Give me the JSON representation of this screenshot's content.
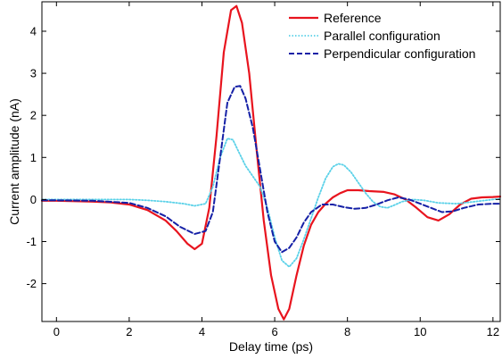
{
  "chart_data": {
    "type": "line",
    "title": "",
    "xlabel": "Delay time (ps)",
    "ylabel": "Current amplitude (nA)",
    "xlim": [
      -0.4,
      12.2
    ],
    "ylim": [
      -2.9,
      4.7
    ],
    "xticks": [
      0,
      2,
      4,
      6,
      8,
      10,
      12
    ],
    "yticks": [
      -2,
      -1,
      0,
      1,
      2,
      3,
      4
    ],
    "xtick_labels": [
      "0",
      "2",
      "4",
      "6",
      "8",
      "10",
      "12"
    ],
    "ytick_labels": [
      "-2",
      "-1",
      "0",
      "1",
      "2",
      "3",
      "4"
    ],
    "grid": false,
    "legend_position": "top-right",
    "series": [
      {
        "name": "Reference",
        "color": "#e8141e",
        "style": "solid",
        "x": [
          -0.4,
          0,
          0.5,
          1,
          1.5,
          2,
          2.5,
          3,
          3.3,
          3.6,
          3.8,
          4,
          4.2,
          4.4,
          4.6,
          4.8,
          4.95,
          5.1,
          5.3,
          5.5,
          5.7,
          5.9,
          6.1,
          6.25,
          6.4,
          6.6,
          6.8,
          7,
          7.2,
          7.4,
          7.6,
          7.8,
          8,
          8.3,
          8.6,
          9,
          9.3,
          9.6,
          9.9,
          10.2,
          10.5,
          10.8,
          11.1,
          11.4,
          11.7,
          12,
          12.2
        ],
        "y": [
          -0.03,
          -0.03,
          -0.04,
          -0.05,
          -0.07,
          -0.12,
          -0.25,
          -0.5,
          -0.75,
          -1.05,
          -1.18,
          -1.05,
          -0.2,
          1.5,
          3.5,
          4.5,
          4.6,
          4.2,
          3.0,
          1.2,
          -0.5,
          -1.8,
          -2.6,
          -2.85,
          -2.6,
          -1.8,
          -1.1,
          -0.6,
          -0.3,
          -0.1,
          0.05,
          0.15,
          0.22,
          0.22,
          0.2,
          0.18,
          0.12,
          0.0,
          -0.2,
          -0.42,
          -0.5,
          -0.35,
          -0.12,
          0.02,
          0.05,
          0.06,
          0.07
        ]
      },
      {
        "name": "Parallel configuration",
        "color": "#5ad1e8",
        "style": "dotted",
        "x": [
          -0.4,
          0,
          1,
          2,
          2.5,
          3,
          3.5,
          3.8,
          4.1,
          4.3,
          4.5,
          4.7,
          4.85,
          5.0,
          5.2,
          5.4,
          5.6,
          5.8,
          6.0,
          6.2,
          6.4,
          6.6,
          6.8,
          7.0,
          7.2,
          7.4,
          7.6,
          7.75,
          7.9,
          8.1,
          8.3,
          8.5,
          8.7,
          8.9,
          9.1,
          9.3,
          9.5,
          9.8,
          10.1,
          10.5,
          11,
          11.5,
          12,
          12.2
        ],
        "y": [
          0.0,
          0.0,
          0.0,
          0.0,
          -0.02,
          -0.05,
          -0.1,
          -0.15,
          -0.1,
          0.3,
          1.0,
          1.45,
          1.42,
          1.15,
          0.8,
          0.55,
          0.3,
          -0.2,
          -0.9,
          -1.45,
          -1.6,
          -1.4,
          -0.95,
          -0.45,
          0.05,
          0.5,
          0.78,
          0.85,
          0.82,
          0.65,
          0.4,
          0.15,
          -0.05,
          -0.17,
          -0.2,
          -0.13,
          -0.05,
          0.0,
          -0.02,
          -0.08,
          -0.1,
          -0.05,
          0.0,
          0.02
        ]
      },
      {
        "name": "Perpendicular configuration",
        "color": "#1520a6",
        "style": "dashed",
        "x": [
          -0.4,
          0,
          1,
          2,
          2.5,
          3,
          3.4,
          3.8,
          4.1,
          4.3,
          4.5,
          4.7,
          4.9,
          5.05,
          5.2,
          5.4,
          5.6,
          5.8,
          6.0,
          6.2,
          6.4,
          6.6,
          6.8,
          7.0,
          7.3,
          7.6,
          7.9,
          8.2,
          8.5,
          8.8,
          9.1,
          9.4,
          9.7,
          10.0,
          10.3,
          10.6,
          10.9,
          11.2,
          11.6,
          12,
          12.2
        ],
        "y": [
          -0.02,
          -0.02,
          -0.03,
          -0.08,
          -0.2,
          -0.4,
          -0.65,
          -0.82,
          -0.75,
          -0.3,
          1.0,
          2.3,
          2.68,
          2.7,
          2.4,
          1.7,
          0.7,
          -0.3,
          -1.0,
          -1.25,
          -1.15,
          -0.9,
          -0.55,
          -0.3,
          -0.12,
          -0.12,
          -0.18,
          -0.22,
          -0.2,
          -0.12,
          -0.02,
          0.05,
          0.0,
          -0.1,
          -0.2,
          -0.3,
          -0.28,
          -0.2,
          -0.12,
          -0.1,
          -0.1
        ]
      }
    ]
  }
}
